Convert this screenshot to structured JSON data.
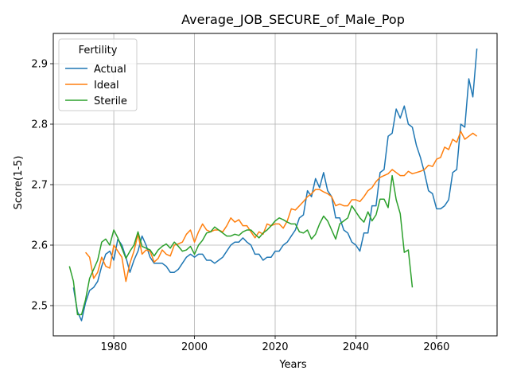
{
  "chart_data": {
    "type": "line",
    "title": "Average_JOB_SECURE_of_Male_Pop",
    "xlabel": "Years",
    "ylabel": "Score(1-5)",
    "xlim": [
      1965,
      2075
    ],
    "ylim": [
      2.45,
      2.95
    ],
    "xticks": [
      1980,
      2000,
      2020,
      2040,
      2060
    ],
    "yticks": [
      2.5,
      2.6,
      2.7,
      2.8,
      2.9
    ],
    "grid": true,
    "legend": {
      "title": "Fertility",
      "placement": "top-left"
    },
    "series": [
      {
        "name": "Actual",
        "color": "#1f77b4",
        "x": [
          1970,
          1971,
          1972,
          1973,
          1974,
          1975,
          1976,
          1977,
          1978,
          1979,
          1980,
          1981,
          1982,
          1983,
          1984,
          1985,
          1986,
          1987,
          1988,
          1989,
          1990,
          1991,
          1992,
          1993,
          1994,
          1995,
          1996,
          1997,
          1998,
          1999,
          2000,
          2001,
          2002,
          2003,
          2004,
          2005,
          2006,
          2007,
          2008,
          2009,
          2010,
          2011,
          2012,
          2013,
          2014,
          2015,
          2016,
          2017,
          2018,
          2019,
          2020,
          2021,
          2022,
          2023,
          2024,
          2025,
          2026,
          2027,
          2028,
          2029,
          2030,
          2031,
          2032,
          2033,
          2034,
          2035,
          2036,
          2037,
          2038,
          2039,
          2040,
          2041,
          2042,
          2043,
          2044,
          2045,
          2046,
          2047,
          2048,
          2049,
          2050,
          2051,
          2052,
          2053,
          2054,
          2055,
          2056,
          2057,
          2058,
          2059,
          2060,
          2061,
          2062,
          2063,
          2064,
          2065,
          2066,
          2067,
          2068,
          2069,
          2070
        ],
        "y": [
          2.53,
          2.49,
          2.475,
          2.505,
          2.525,
          2.53,
          2.54,
          2.565,
          2.585,
          2.59,
          2.575,
          2.61,
          2.6,
          2.58,
          2.555,
          2.575,
          2.59,
          2.615,
          2.6,
          2.58,
          2.57,
          2.57,
          2.57,
          2.565,
          2.555,
          2.555,
          2.56,
          2.57,
          2.58,
          2.585,
          2.58,
          2.585,
          2.585,
          2.575,
          2.575,
          2.57,
          2.575,
          2.58,
          2.59,
          2.6,
          2.605,
          2.605,
          2.612,
          2.605,
          2.6,
          2.585,
          2.585,
          2.575,
          2.58,
          2.58,
          2.59,
          2.59,
          2.6,
          2.605,
          2.615,
          2.625,
          2.645,
          2.65,
          2.69,
          2.68,
          2.71,
          2.695,
          2.72,
          2.69,
          2.68,
          2.645,
          2.645,
          2.625,
          2.62,
          2.605,
          2.6,
          2.59,
          2.62,
          2.62,
          2.665,
          2.665,
          2.72,
          2.725,
          2.78,
          2.785,
          2.825,
          2.81,
          2.83,
          2.8,
          2.795,
          2.765,
          2.745,
          2.72,
          2.69,
          2.685,
          2.66,
          2.66,
          2.665,
          2.675,
          2.72,
          2.725,
          2.8,
          2.795,
          2.875,
          2.845,
          2.925
        ]
      },
      {
        "name": "Ideal",
        "color": "#ff7f0e",
        "x": [
          1973,
          1974,
          1975,
          1976,
          1977,
          1978,
          1979,
          1980,
          1981,
          1982,
          1983,
          1984,
          1985,
          1986,
          1987,
          1988,
          1989,
          1990,
          1991,
          1992,
          1993,
          1994,
          1995,
          1996,
          1997,
          1998,
          1999,
          2000,
          2001,
          2002,
          2003,
          2004,
          2005,
          2006,
          2007,
          2008,
          2009,
          2010,
          2011,
          2012,
          2013,
          2014,
          2015,
          2016,
          2017,
          2018,
          2019,
          2020,
          2021,
          2022,
          2023,
          2024,
          2025,
          2026,
          2027,
          2028,
          2029,
          2030,
          2031,
          2032,
          2033,
          2034,
          2035,
          2036,
          2037,
          2038,
          2039,
          2040,
          2041,
          2042,
          2043,
          2044,
          2045,
          2046,
          2047,
          2048,
          2049,
          2050,
          2051,
          2052,
          2053,
          2054,
          2055,
          2056,
          2057,
          2058,
          2059,
          2060,
          2061,
          2062,
          2063,
          2064,
          2065,
          2066,
          2067,
          2068,
          2069,
          2070
        ],
        "y": [
          2.588,
          2.58,
          2.545,
          2.555,
          2.58,
          2.565,
          2.562,
          2.6,
          2.59,
          2.58,
          2.54,
          2.57,
          2.59,
          2.618,
          2.585,
          2.592,
          2.59,
          2.572,
          2.578,
          2.592,
          2.585,
          2.582,
          2.6,
          2.602,
          2.605,
          2.618,
          2.625,
          2.605,
          2.622,
          2.635,
          2.625,
          2.622,
          2.625,
          2.625,
          2.622,
          2.632,
          2.645,
          2.638,
          2.642,
          2.632,
          2.632,
          2.622,
          2.612,
          2.622,
          2.618,
          2.635,
          2.632,
          2.635,
          2.635,
          2.628,
          2.64,
          2.66,
          2.658,
          2.665,
          2.672,
          2.68,
          2.685,
          2.692,
          2.692,
          2.688,
          2.685,
          2.68,
          2.665,
          2.668,
          2.665,
          2.665,
          2.675,
          2.675,
          2.672,
          2.68,
          2.69,
          2.695,
          2.705,
          2.712,
          2.715,
          2.718,
          2.725,
          2.72,
          2.715,
          2.715,
          2.722,
          2.718,
          2.72,
          2.722,
          2.725,
          2.732,
          2.73,
          2.742,
          2.745,
          2.762,
          2.758,
          2.775,
          2.77,
          2.788,
          2.775,
          2.78,
          2.785,
          2.78
        ]
      },
      {
        "name": "Sterile",
        "color": "#2ca02c",
        "x": [
          1969,
          1970,
          1971,
          1972,
          1973,
          1974,
          1975,
          1976,
          1977,
          1978,
          1979,
          1980,
          1981,
          1982,
          1983,
          1984,
          1985,
          1986,
          1987,
          1988,
          1989,
          1990,
          1991,
          1992,
          1993,
          1994,
          1995,
          1996,
          1997,
          1998,
          1999,
          2000,
          2001,
          2002,
          2003,
          2004,
          2005,
          2006,
          2007,
          2008,
          2009,
          2010,
          2011,
          2012,
          2013,
          2014,
          2015,
          2016,
          2017,
          2018,
          2019,
          2020,
          2021,
          2022,
          2023,
          2024,
          2025,
          2026,
          2027,
          2028,
          2029,
          2030,
          2031,
          2032,
          2033,
          2034,
          2035,
          2036,
          2037,
          2038,
          2039,
          2040,
          2041,
          2042,
          2043,
          2044,
          2045,
          2046,
          2047,
          2048,
          2049,
          2050,
          2051,
          2052,
          2053,
          2054
        ],
        "y": [
          2.565,
          2.54,
          2.485,
          2.485,
          2.51,
          2.545,
          2.56,
          2.575,
          2.605,
          2.61,
          2.6,
          2.625,
          2.612,
          2.595,
          2.578,
          2.59,
          2.6,
          2.622,
          2.598,
          2.595,
          2.592,
          2.582,
          2.592,
          2.598,
          2.602,
          2.595,
          2.605,
          2.598,
          2.59,
          2.592,
          2.598,
          2.585,
          2.6,
          2.608,
          2.62,
          2.622,
          2.63,
          2.625,
          2.62,
          2.615,
          2.615,
          2.618,
          2.616,
          2.622,
          2.625,
          2.625,
          2.618,
          2.612,
          2.62,
          2.625,
          2.632,
          2.64,
          2.645,
          2.642,
          2.638,
          2.635,
          2.635,
          2.622,
          2.62,
          2.625,
          2.61,
          2.618,
          2.635,
          2.648,
          2.64,
          2.625,
          2.61,
          2.635,
          2.64,
          2.645,
          2.665,
          2.655,
          2.645,
          2.638,
          2.655,
          2.64,
          2.65,
          2.676,
          2.676,
          2.662,
          2.715,
          2.675,
          2.652,
          2.588,
          2.592,
          2.53
        ]
      }
    ]
  }
}
